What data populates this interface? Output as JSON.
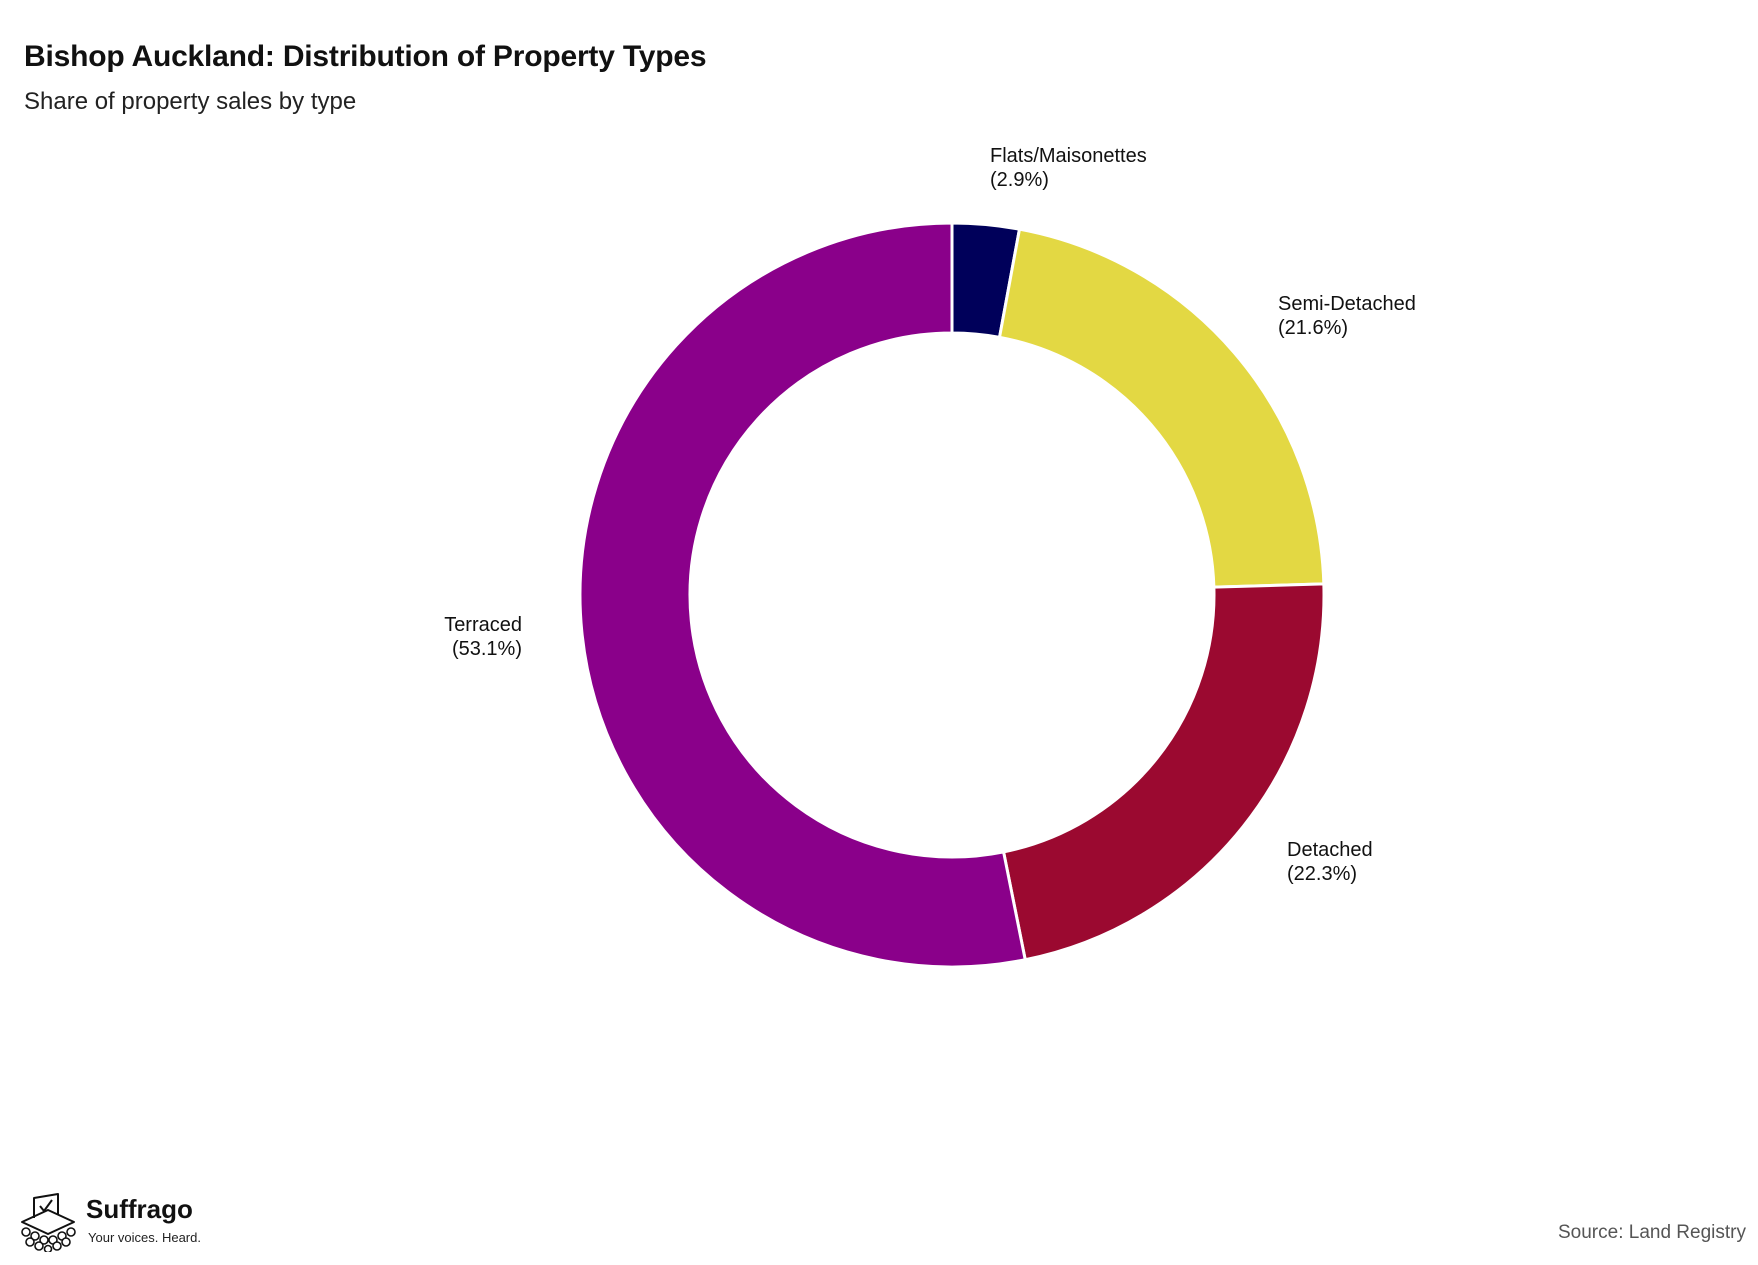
{
  "chart_data": {
    "type": "pie",
    "variant": "donut",
    "title": "Bishop Auckland: Distribution of Property Types",
    "subtitle": "Share of property sales by type",
    "slices": [
      {
        "label": "Flats/Maisonettes",
        "value": 2.9,
        "value_label": "(2.9%)",
        "color": "#00005a"
      },
      {
        "label": "Semi-Detached",
        "value": 21.6,
        "value_label": "(21.6%)",
        "color": "#e3d843"
      },
      {
        "label": "Detached",
        "value": 22.3,
        "value_label": "(22.3%)",
        "color": "#9b0930"
      },
      {
        "label": "Terraced",
        "value": 53.1,
        "value_label": "(53.1%)",
        "color": "#8a008a"
      }
    ],
    "start_angle": "12 o'clock",
    "direction": "clockwise",
    "legend": "none (slice labels outside ring)"
  },
  "branding": {
    "name": "Suffrago",
    "tagline": "Your voices. Heard.",
    "logo_icon": "ballot-box-icon"
  },
  "source": "Source: Land Registry"
}
